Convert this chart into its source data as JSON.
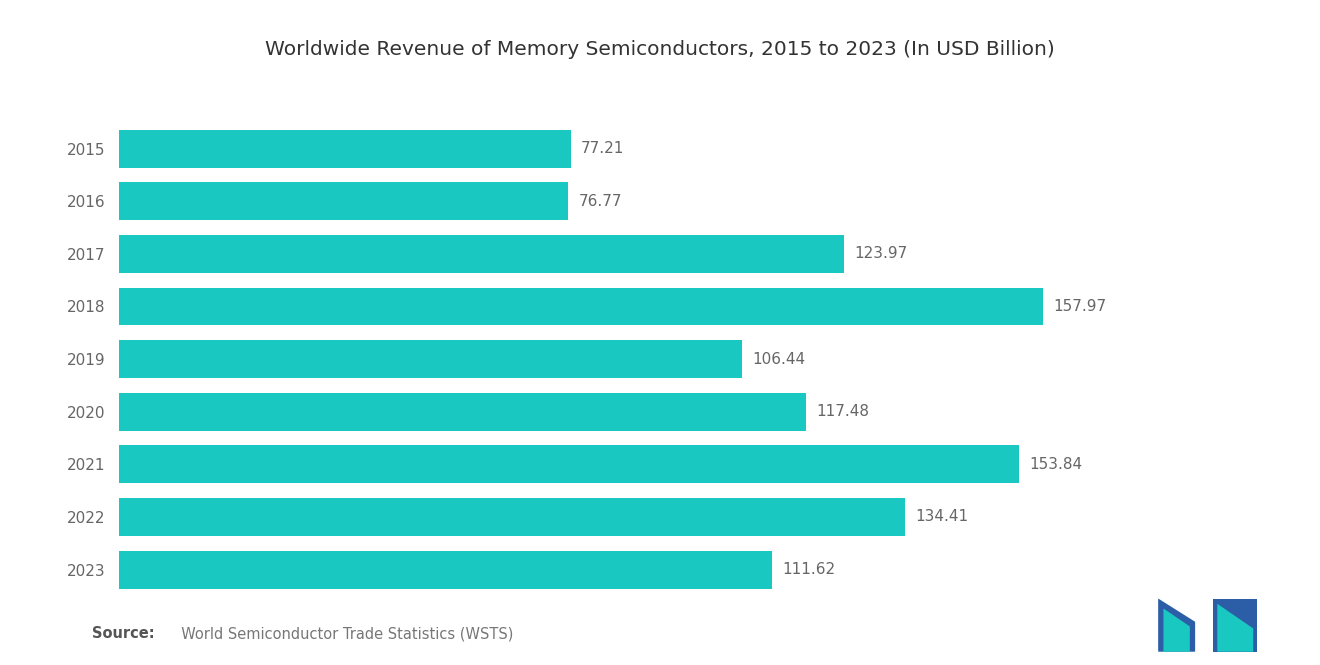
{
  "title": "Worldwide Revenue of Memory Semiconductors, 2015 to 2023 (In USD Billion)",
  "years": [
    "2015",
    "2016",
    "2017",
    "2018",
    "2019",
    "2020",
    "2021",
    "2022",
    "2023"
  ],
  "values": [
    77.21,
    76.77,
    123.97,
    157.97,
    106.44,
    117.48,
    153.84,
    134.41,
    111.62
  ],
  "bar_color": "#19C8C0",
  "background_color": "#ffffff",
  "source_bold": "Source:",
  "source_text": "  World Semiconductor Trade Statistics (WSTS)",
  "title_fontsize": 14.5,
  "label_fontsize": 11,
  "year_fontsize": 11,
  "source_fontsize": 10.5,
  "xlim": [
    0,
    185
  ],
  "bar_height": 0.72
}
